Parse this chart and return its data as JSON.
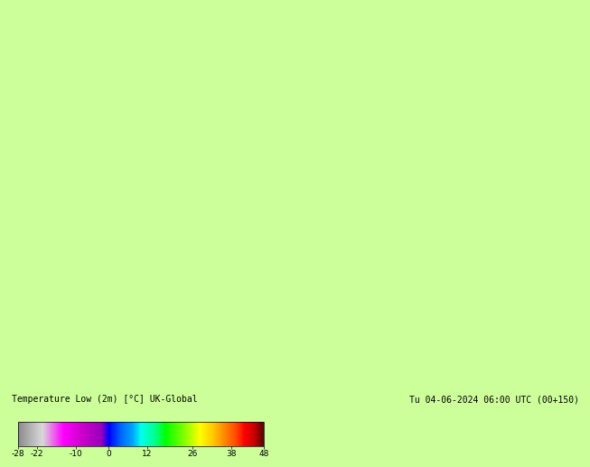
{
  "title_left": "Temperature Low (2m) [°C] UK-Global",
  "title_right": "Tu 04-06-2024 06:00 UTC (00+150)",
  "colorbar_ticks": [
    -28,
    -22,
    -10,
    0,
    12,
    26,
    38,
    48
  ],
  "colorbar_tick_labels": [
    "-28",
    "-22",
    "-10",
    "0",
    "12",
    "26",
    "38",
    "48"
  ],
  "bg_color": "#ccff99",
  "land_color": "#e0e0e0",
  "border_color": "#1a1a1a",
  "sea_color": "#ccff99",
  "fig_width": 6.34,
  "fig_height": 4.9,
  "map_extent": [
    2.0,
    20.0,
    46.5,
    57.5
  ],
  "colormap_points": [
    [
      0.0,
      "#888888"
    ],
    [
      0.04,
      "#aaaaaa"
    ],
    [
      0.1,
      "#d8d8d8"
    ],
    [
      0.185,
      "#ff00ff"
    ],
    [
      0.26,
      "#cc00cc"
    ],
    [
      0.34,
      "#9900bb"
    ],
    [
      0.37,
      "#0000ff"
    ],
    [
      0.42,
      "#0066ff"
    ],
    [
      0.47,
      "#00aaff"
    ],
    [
      0.5,
      "#00ffee"
    ],
    [
      0.56,
      "#00ff88"
    ],
    [
      0.6,
      "#00ff00"
    ],
    [
      0.68,
      "#88ff00"
    ],
    [
      0.74,
      "#ffff00"
    ],
    [
      0.79,
      "#ffcc00"
    ],
    [
      0.84,
      "#ff8800"
    ],
    [
      0.89,
      "#ff4400"
    ],
    [
      0.92,
      "#ff0000"
    ],
    [
      0.96,
      "#cc0000"
    ],
    [
      1.0,
      "#550000"
    ]
  ]
}
